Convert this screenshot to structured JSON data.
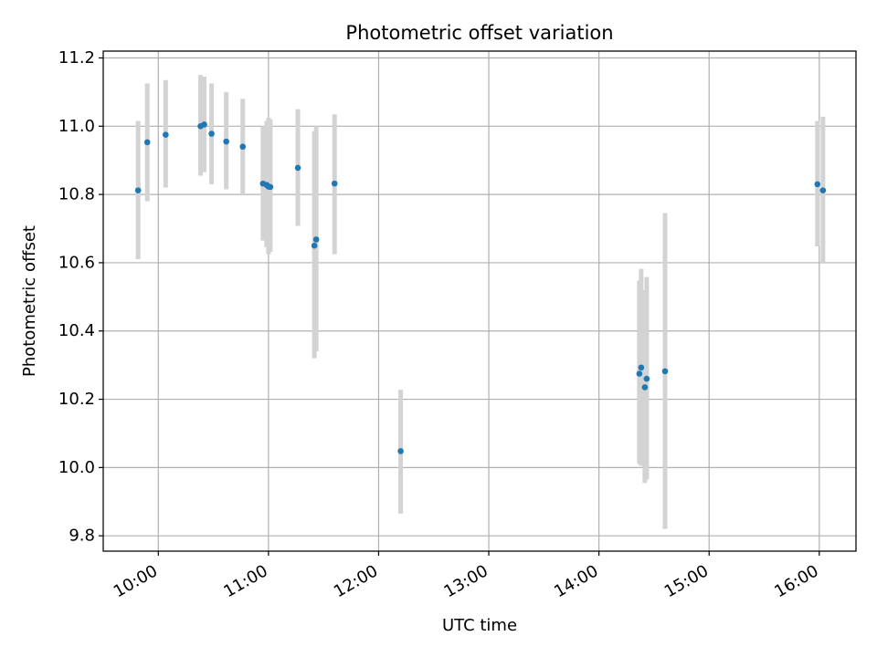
{
  "chart_data": {
    "type": "scatter",
    "title": "Photometric offset variation",
    "xlabel": "UTC time",
    "ylabel": "Photometric offset",
    "x_ticks": [
      "10:00",
      "11:00",
      "12:00",
      "13:00",
      "14:00",
      "15:00",
      "16:00"
    ],
    "y_ticks": [
      "9.8",
      "10.0",
      "10.2",
      "10.4",
      "10.6",
      "10.8",
      "11.0",
      "11.2"
    ],
    "xlim": [
      "09:30",
      "16:20"
    ],
    "ylim": [
      9.755,
      11.22
    ],
    "grid": true,
    "errorbar_color": "#d3d3d3",
    "marker_color": "#1f77b4",
    "points": [
      {
        "t": "09:49",
        "y": 10.812,
        "lo": 10.61,
        "hi": 11.015
      },
      {
        "t": "09:54",
        "y": 10.953,
        "lo": 10.78,
        "hi": 11.125
      },
      {
        "t": "10:04",
        "y": 10.975,
        "lo": 10.82,
        "hi": 11.135
      },
      {
        "t": "10:23",
        "y": 11.0,
        "lo": 10.855,
        "hi": 11.15
      },
      {
        "t": "10:25",
        "y": 11.005,
        "lo": 10.865,
        "hi": 11.145
      },
      {
        "t": "10:29",
        "y": 10.978,
        "lo": 10.83,
        "hi": 11.125
      },
      {
        "t": "10:37",
        "y": 10.955,
        "lo": 10.815,
        "hi": 11.1
      },
      {
        "t": "10:46",
        "y": 10.94,
        "lo": 10.8,
        "hi": 11.08
      },
      {
        "t": "10:57",
        "y": 10.832,
        "lo": 10.665,
        "hi": 11.0
      },
      {
        "t": "10:59",
        "y": 10.828,
        "lo": 10.645,
        "hi": 11.015
      },
      {
        "t": "11:00",
        "y": 10.823,
        "lo": 10.625,
        "hi": 11.025
      },
      {
        "t": "11:01",
        "y": 10.822,
        "lo": 10.632,
        "hi": 11.02
      },
      {
        "t": "11:16",
        "y": 10.878,
        "lo": 10.708,
        "hi": 11.05
      },
      {
        "t": "11:25",
        "y": 10.65,
        "lo": 10.32,
        "hi": 10.985
      },
      {
        "t": "11:26",
        "y": 10.668,
        "lo": 10.34,
        "hi": 11.0
      },
      {
        "t": "11:36",
        "y": 10.832,
        "lo": 10.625,
        "hi": 11.035
      },
      {
        "t": "12:12",
        "y": 10.048,
        "lo": 9.865,
        "hi": 10.228
      },
      {
        "t": "14:22",
        "y": 10.275,
        "lo": 10.01,
        "hi": 10.548
      },
      {
        "t": "14:23",
        "y": 10.293,
        "lo": 10.005,
        "hi": 10.582
      },
      {
        "t": "14:25",
        "y": 10.235,
        "lo": 9.955,
        "hi": 10.52
      },
      {
        "t": "14:26",
        "y": 10.26,
        "lo": 9.965,
        "hi": 10.558
      },
      {
        "t": "14:36",
        "y": 10.282,
        "lo": 9.82,
        "hi": 10.745
      },
      {
        "t": "15:59",
        "y": 10.83,
        "lo": 10.648,
        "hi": 11.015
      },
      {
        "t": "16:02",
        "y": 10.812,
        "lo": 10.6,
        "hi": 11.028
      }
    ]
  }
}
